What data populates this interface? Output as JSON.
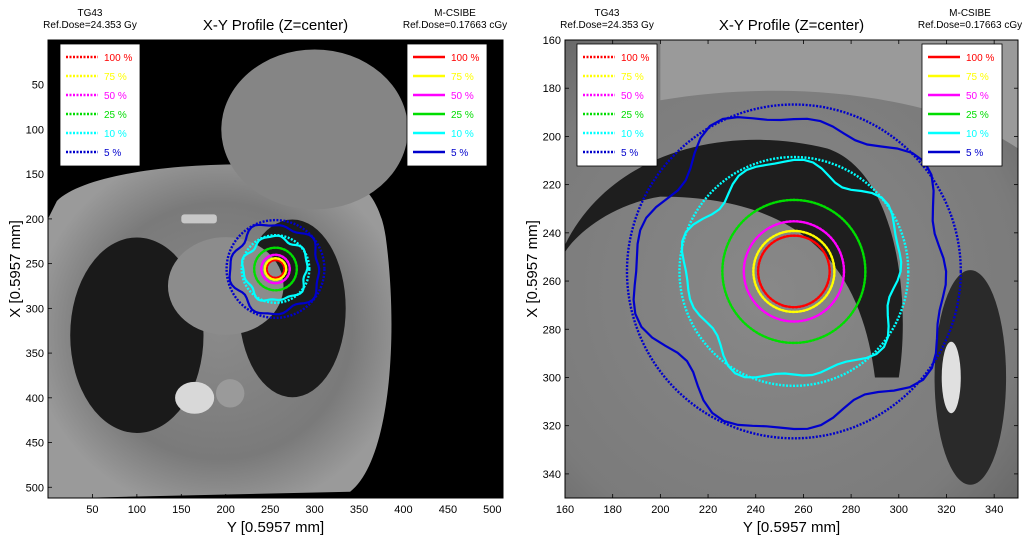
{
  "chart_data": [
    {
      "type": "line",
      "title": "X-Y Profile (Z=center)",
      "header_left": [
        "TG43",
        "Ref.Dose=24.353 Gy"
      ],
      "header_right": [
        "M-CSIBE",
        "Ref.Dose=0.17663 cGy"
      ],
      "xlabel": "Y [0.5957 mm]",
      "ylabel": "X [0.5957 mm]",
      "xlim": [
        0,
        512
      ],
      "ylim": [
        0,
        512
      ],
      "y_inverted": true,
      "xticks": [
        50,
        100,
        150,
        200,
        250,
        300,
        350,
        400,
        450,
        500
      ],
      "yticks": [
        50,
        100,
        150,
        200,
        250,
        300,
        350,
        400,
        450,
        500
      ],
      "center": [
        256,
        256
      ],
      "background": "CT slice (thorax)",
      "legend_left": {
        "placement": "top-left",
        "entries": [
          {
            "label": "100 %",
            "color": "#ff0000",
            "style": "dotted"
          },
          {
            "label": "75 %",
            "color": "#ffff00",
            "style": "dotted"
          },
          {
            "label": "50 %",
            "color": "#ff00ff",
            "style": "dotted"
          },
          {
            "label": "25 %",
            "color": "#00dd00",
            "style": "dotted"
          },
          {
            "label": "10 %",
            "color": "#00ffff",
            "style": "dotted"
          },
          {
            "label": "5 %",
            "color": "#0000cc",
            "style": "dotted"
          }
        ]
      },
      "legend_right": {
        "placement": "top-right",
        "entries": [
          {
            "label": "100 %",
            "color": "#ff0000",
            "style": "solid"
          },
          {
            "label": "75 %",
            "color": "#ffff00",
            "style": "solid"
          },
          {
            "label": "50 %",
            "color": "#ff00ff",
            "style": "solid"
          },
          {
            "label": "25 %",
            "color": "#00dd00",
            "style": "solid"
          },
          {
            "label": "10 %",
            "color": "#00ffff",
            "style": "solid"
          },
          {
            "label": "5 %",
            "color": "#0000cc",
            "style": "solid"
          }
        ]
      },
      "isodose_radii": [
        {
          "level": "100 %",
          "color": "#ff0000",
          "tg43": 10,
          "mcsibe": 10
        },
        {
          "level": "75 %",
          "color": "#ffff00",
          "tg43": 12,
          "mcsibe": 12
        },
        {
          "level": "50 %",
          "color": "#ff00ff",
          "tg43": 16,
          "mcsibe": 16
        },
        {
          "level": "25 %",
          "color": "#00dd00",
          "tg43": 24,
          "mcsibe": 24
        },
        {
          "level": "10 %",
          "color": "#00ffff",
          "tg43": 38,
          "mcsibe": 36
        },
        {
          "level": "5 %",
          "color": "#0000cc",
          "tg43": 55,
          "mcsibe": 50
        }
      ]
    },
    {
      "type": "line",
      "title": "X-Y Profile (Z=center)",
      "header_left": [
        "TG43",
        "Ref.Dose=24.353 Gy"
      ],
      "header_right": [
        "M-CSIBE",
        "Ref.Dose=0.17663 cGy"
      ],
      "xlabel": "Y [0.5957 mm]",
      "ylabel": "X [0.5957 mm]",
      "xlim": [
        160,
        350
      ],
      "ylim": [
        160,
        350
      ],
      "y_inverted": true,
      "xticks": [
        160,
        180,
        200,
        220,
        240,
        260,
        280,
        300,
        320,
        340
      ],
      "yticks": [
        160,
        180,
        200,
        220,
        240,
        260,
        280,
        300,
        320,
        340
      ],
      "center": [
        256,
        256
      ],
      "background": "CT slice (thorax, zoomed)",
      "legend_left": {
        "placement": "top-left",
        "entries": [
          {
            "label": "100 %",
            "color": "#ff0000",
            "style": "dotted"
          },
          {
            "label": "75 %",
            "color": "#ffff00",
            "style": "dotted"
          },
          {
            "label": "50 %",
            "color": "#ff00ff",
            "style": "dotted"
          },
          {
            "label": "25 %",
            "color": "#00dd00",
            "style": "dotted"
          },
          {
            "label": "10 %",
            "color": "#00ffff",
            "style": "dotted"
          },
          {
            "label": "5 %",
            "color": "#0000cc",
            "style": "dotted"
          }
        ]
      },
      "legend_right": {
        "placement": "top-right",
        "entries": [
          {
            "label": "100 %",
            "color": "#ff0000",
            "style": "solid"
          },
          {
            "label": "75 %",
            "color": "#ffff00",
            "style": "solid"
          },
          {
            "label": "50 %",
            "color": "#ff00ff",
            "style": "solid"
          },
          {
            "label": "25 %",
            "color": "#00dd00",
            "style": "solid"
          },
          {
            "label": "10 %",
            "color": "#00ffff",
            "style": "solid"
          },
          {
            "label": "5 %",
            "color": "#0000cc",
            "style": "solid"
          }
        ]
      },
      "isodose_radii": [
        {
          "level": "100 %",
          "color": "#ff0000",
          "tg43": 15,
          "mcsibe": 15
        },
        {
          "level": "75 %",
          "color": "#ffff00",
          "tg43": 17,
          "mcsibe": 17
        },
        {
          "level": "50 %",
          "color": "#ff00ff",
          "tg43": 21,
          "mcsibe": 21
        },
        {
          "level": "25 %",
          "color": "#00dd00",
          "tg43": 30,
          "mcsibe": 30
        },
        {
          "level": "10 %",
          "color": "#00ffff",
          "tg43": 48,
          "mcsibe": 45
        },
        {
          "level": "5 %",
          "color": "#0000cc",
          "tg43": 70,
          "mcsibe": 65
        }
      ]
    }
  ]
}
